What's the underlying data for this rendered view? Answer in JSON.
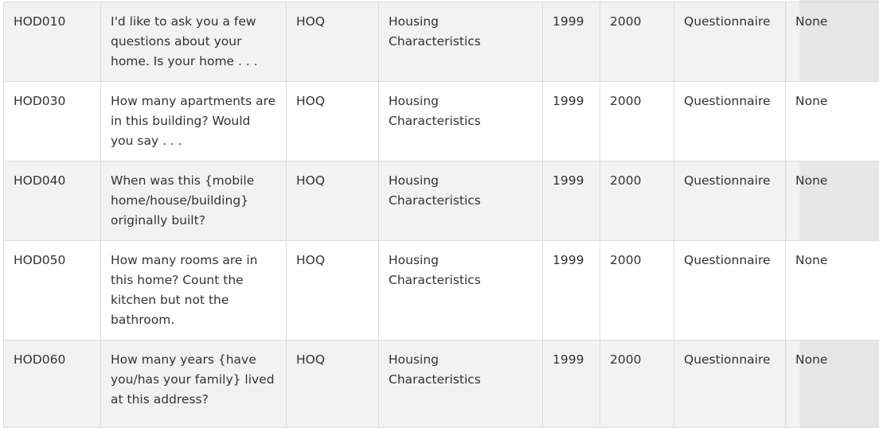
{
  "rows": [
    {
      "variable": "HOD010",
      "description": "I'd like to ask you a few questions about your home. Is your home . . .",
      "data_file": "HOQ",
      "data_file_description": "Housing Characteristics",
      "begin_year": "1999",
      "end_year": "2000",
      "component": "Questionnaire",
      "constraints": "None"
    },
    {
      "variable": "HOD030",
      "description": "How many apartments are in this building? Would you say . . .",
      "data_file": "HOQ",
      "data_file_description": "Housing Characteristics",
      "begin_year": "1999",
      "end_year": "2000",
      "component": "Questionnaire",
      "constraints": "None"
    },
    {
      "variable": "HOD040",
      "description": "When was this {mobile home/house/building} originally built?",
      "data_file": "HOQ",
      "data_file_description": "Housing Characteristics",
      "begin_year": "1999",
      "end_year": "2000",
      "component": "Questionnaire",
      "constraints": "None"
    },
    {
      "variable": "HOD050",
      "description": "How many rooms are in this home? Count the kitchen but not the bathroom.",
      "data_file": "HOQ",
      "data_file_description": "Housing Characteristics",
      "begin_year": "1999",
      "end_year": "2000",
      "component": "Questionnaire",
      "constraints": "None"
    },
    {
      "variable": "HOD060",
      "description": "How many years {have you/has your family} lived at this address?",
      "data_file": "HOQ",
      "data_file_description": "Housing Characteristics",
      "begin_year": "1999",
      "end_year": "2000",
      "component": "Questionnaire",
      "constraints": "None"
    }
  ]
}
